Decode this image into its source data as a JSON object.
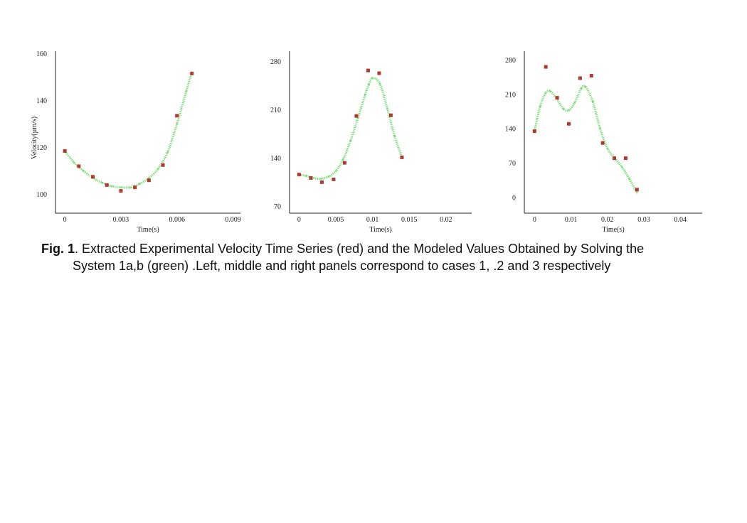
{
  "caption": {
    "label": "Fig. 1",
    "text1": ". Extracted Experimental Velocity Time Series (red) and the Modeled Values Obtained by Solving the",
    "text2": "System 1a,b (green) .Left, middle and right panels correspond to cases 1, .2 and 3 respectively"
  },
  "colors": {
    "experimental": "#b03a2e",
    "model": "#7ee07a",
    "axis": "#222222"
  },
  "chart_data": [
    {
      "type": "scatter",
      "xlabel": "Time(s)",
      "ylabel": "Velocity(µm/s)",
      "xticks": [
        "0",
        "0.003",
        "0.006",
        "0.009"
      ],
      "yticks": [
        "100",
        "120",
        "140",
        "160"
      ],
      "xlim": [
        -0.0005,
        0.0094
      ],
      "ylim": [
        92,
        161
      ],
      "series": [
        {
          "name": "",
          "kind": "points",
          "x": [
            0,
            0.00075,
            0.0015,
            0.00225,
            0.003,
            0.00375,
            0.0045,
            0.00525,
            0.006,
            0.0068
          ],
          "y": [
            118.5,
            112,
            107.5,
            104,
            101.5,
            103,
            106,
            112.5,
            133.5,
            151.5
          ]
        },
        {
          "name": "",
          "kind": "curve",
          "x": [
            0,
            0.0005,
            0.001,
            0.0015,
            0.002,
            0.0025,
            0.003,
            0.0035,
            0.004,
            0.0045,
            0.005,
            0.0055,
            0.006,
            0.0065,
            0.0068
          ],
          "y": [
            118.5,
            113.5,
            110,
            107,
            105,
            103.5,
            103,
            103,
            104.5,
            107,
            111,
            118,
            130,
            144,
            152
          ]
        }
      ]
    },
    {
      "type": "scatter",
      "xlabel": "Time(s)",
      "ylabel": "",
      "xticks": [
        "0",
        "0.005",
        "0.01",
        "0.015",
        "0.02"
      ],
      "yticks": [
        "70",
        "140",
        "210",
        "280"
      ],
      "xlim": [
        -0.0013,
        0.0235
      ],
      "ylim": [
        60,
        295
      ],
      "series": [
        {
          "name": "",
          "kind": "points",
          "x": [
            0,
            0.0016,
            0.0031,
            0.0047,
            0.0062,
            0.0078,
            0.0094,
            0.0109,
            0.0125,
            0.014
          ],
          "y": [
            116,
            111,
            105,
            109,
            133,
            201,
            267,
            263,
            202,
            141
          ]
        },
        {
          "name": "",
          "kind": "curve",
          "x": [
            0,
            0.001,
            0.002,
            0.003,
            0.004,
            0.005,
            0.006,
            0.007,
            0.008,
            0.009,
            0.0095,
            0.01,
            0.011,
            0.012,
            0.013,
            0.014
          ],
          "y": [
            116,
            114,
            111,
            110,
            113,
            121,
            138,
            165,
            198,
            232,
            247,
            256,
            248,
            212,
            172,
            141
          ]
        }
      ]
    },
    {
      "type": "scatter",
      "xlabel": "Time(s)",
      "ylabel": "",
      "xticks": [
        "0",
        "0.01",
        "0.02",
        "0.03",
        "0.04"
      ],
      "yticks": [
        "0",
        "70",
        "140",
        "210",
        "280"
      ],
      "xlim": [
        -0.0028,
        0.046
      ],
      "ylim": [
        -32,
        298
      ],
      "series": [
        {
          "name": "",
          "kind": "points",
          "x": [
            0,
            0.0031,
            0.0062,
            0.0094,
            0.0125,
            0.0156,
            0.0187,
            0.0219,
            0.025,
            0.0281
          ],
          "y": [
            135,
            266,
            203,
            150,
            243,
            248,
            111,
            80,
            80,
            16
          ]
        },
        {
          "name": "",
          "kind": "curve",
          "x": [
            0,
            0.0015,
            0.003,
            0.0042,
            0.006,
            0.008,
            0.0095,
            0.011,
            0.0128,
            0.014,
            0.016,
            0.018,
            0.02,
            0.022,
            0.024,
            0.026,
            0.0281
          ],
          "y": [
            135,
            185,
            212,
            217,
            202,
            180,
            178,
            193,
            222,
            225,
            195,
            140,
            100,
            80,
            62,
            38,
            10
          ]
        }
      ]
    }
  ]
}
